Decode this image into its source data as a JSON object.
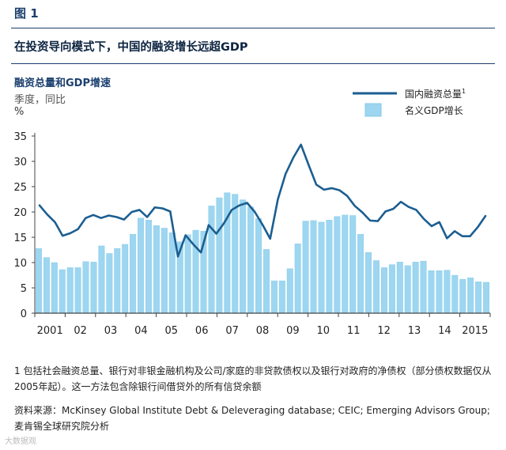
{
  "header": {
    "figure_label": "图 1",
    "title": "在投资导向模式下，中国的融资增长远超GDP"
  },
  "chart_data": {
    "type": "bar",
    "title": "融资总量和GDP增速",
    "subtitle": "季度，同比",
    "unit": "%",
    "ylim": [
      0,
      35
    ],
    "yticks": [
      0,
      5,
      10,
      15,
      20,
      25,
      30,
      35
    ],
    "x_tick_labels": [
      "2001",
      "02",
      "03",
      "04",
      "05",
      "06",
      "07",
      "08",
      "09",
      "10",
      "11",
      "12",
      "13",
      "14",
      "2015"
    ],
    "legend": {
      "line_label": "国内融资总量",
      "line_superscript": "1",
      "bar_label": "名义GDP增长",
      "position": "top-right"
    },
    "colors": {
      "line": "#1b5e91",
      "bar": "#9dd6f0",
      "bar_edge": "#84c8e6",
      "axis": "#444444",
      "text": "#222222"
    },
    "series": [
      {
        "name": "名义GDP增长",
        "type": "bar",
        "values": [
          12.8,
          11.0,
          10.0,
          8.6,
          9.0,
          9.0,
          10.2,
          10.1,
          13.3,
          11.8,
          12.8,
          13.6,
          15.6,
          18.8,
          18.4,
          17.3,
          16.8,
          15.9,
          14.1,
          15.5,
          16.4,
          16.2,
          21.2,
          22.8,
          23.8,
          23.5,
          22.4,
          21.0,
          18.7,
          12.6,
          6.4,
          6.4,
          8.8,
          13.7,
          18.2,
          18.3,
          18.0,
          18.4,
          19.1,
          19.4,
          19.3,
          15.6,
          12.0,
          10.4,
          9.0,
          9.6,
          10.1,
          9.4,
          10.1,
          10.3,
          8.4,
          8.4,
          8.5,
          7.5,
          6.7,
          7.0,
          6.2,
          6.1
        ]
      },
      {
        "name": "国内融资总量",
        "type": "line",
        "values": [
          21.3,
          19.5,
          18.0,
          15.3,
          15.8,
          16.6,
          18.8,
          19.4,
          18.8,
          19.3,
          19.0,
          18.5,
          20.0,
          20.4,
          19.0,
          20.9,
          20.7,
          20.1,
          11.2,
          15.4,
          13.6,
          12.0,
          17.4,
          15.7,
          17.8,
          20.4,
          21.3,
          21.8,
          20.0,
          17.5,
          14.7,
          22.5,
          27.5,
          30.7,
          33.3,
          29.3,
          25.4,
          24.4,
          24.7,
          24.3,
          23.2,
          21.2,
          19.9,
          18.3,
          18.2,
          20.1,
          20.6,
          22.0,
          21.0,
          20.4,
          18.6,
          17.2,
          18.0,
          14.8,
          16.2,
          15.2,
          15.2,
          17.0,
          19.2
        ]
      }
    ]
  },
  "footnote": "1 包括社会融资总量、银行对非银金融机构及公司/家庭的非贷款债权以及银行对政府的净债权（部分债权数据仅从2005年起）。这一方法包含除银行间借贷外的所有信贷余额",
  "source": "资料来源：McKinsey Global Institute Debt & Deleveraging database; CEIC; Emerging Advisors Group; 麦肯锡全球研究院分析",
  "watermark": "大数据观"
}
